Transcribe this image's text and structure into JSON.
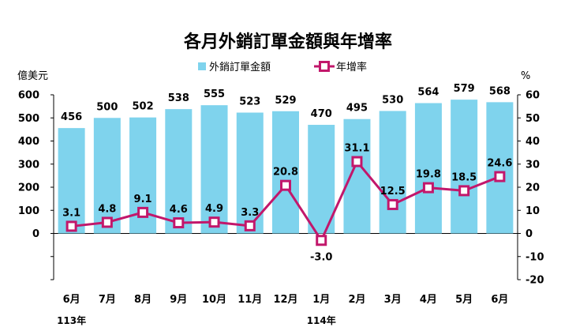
{
  "chart_data": {
    "type": "bar+line",
    "title": "各月外銷訂單金額與年增率",
    "left_unit": "億美元",
    "right_unit": "%",
    "categories": [
      "6月",
      "7月",
      "8月",
      "9月",
      "10月",
      "11月",
      "12月",
      "1月",
      "2月",
      "3月",
      "4月",
      "5月",
      "6月"
    ],
    "year_labels": [
      {
        "index": 0,
        "label": "113年"
      },
      {
        "index": 7,
        "label": "114年"
      }
    ],
    "series": [
      {
        "name": "外銷訂單金額",
        "type": "bar",
        "axis": "left",
        "color": "#7fd3ed",
        "values": [
          456,
          500,
          502,
          538,
          555,
          523,
          529,
          470,
          495,
          530,
          564,
          579,
          568
        ],
        "labels": [
          "456",
          "500",
          "502",
          "538",
          "555",
          "523",
          "529",
          "470",
          "495",
          "530",
          "564",
          "579",
          "568"
        ]
      },
      {
        "name": "年增率",
        "type": "line",
        "axis": "right",
        "color": "#c2176b",
        "values": [
          3.1,
          4.8,
          9.1,
          4.6,
          4.9,
          3.3,
          20.8,
          -3.0,
          31.1,
          12.5,
          19.8,
          18.5,
          24.6
        ],
        "labels": [
          "3.1",
          "4.8",
          "9.1",
          "4.6",
          "4.9",
          "3.3",
          "20.8",
          "-3.0",
          "31.1",
          "12.5",
          "19.8",
          "18.5",
          "24.6"
        ]
      }
    ],
    "left_ticks": [
      "0",
      "100",
      "200",
      "300",
      "400",
      "500",
      "600"
    ],
    "left_ylim": [
      -200,
      600
    ],
    "right_ticks": [
      "-20",
      "-10",
      "0",
      "10",
      "20",
      "30",
      "40",
      "50",
      "60"
    ],
    "right_ylim": [
      -20,
      60
    ],
    "legend_position": "top"
  }
}
